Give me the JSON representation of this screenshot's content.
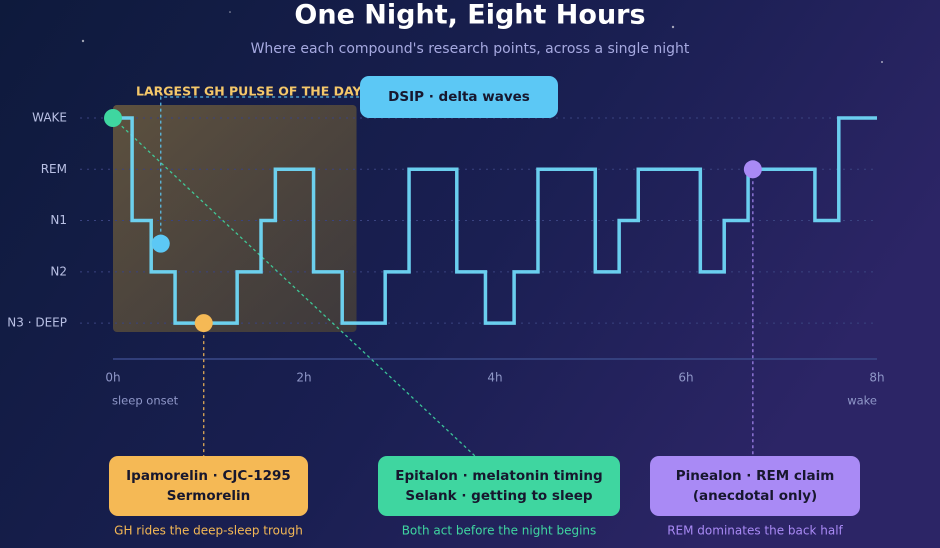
{
  "chart_data": {
    "type": "step",
    "title": "One Night, Eight Hours",
    "subtitle": "Where each compound's research points, across a single night",
    "color": "#6fd8f7",
    "x": [
      0,
      0.2,
      0.4,
      0.65,
      1.3,
      1.55,
      1.7,
      2.1,
      2.4,
      2.85,
      3.1,
      3.6,
      3.9,
      4.2,
      4.45,
      5.05,
      5.3,
      5.5,
      6.15,
      6.4,
      6.65,
      7.35,
      7.6,
      8
    ],
    "values": [
      4,
      2,
      1,
      0,
      1,
      2,
      3,
      1,
      0,
      1,
      3,
      1,
      0,
      1,
      3,
      1,
      2,
      3,
      1,
      2,
      3,
      2,
      4,
      4
    ],
    "xlim": [
      0,
      8
    ],
    "xticks": [
      {
        "value": 0,
        "label": "0h"
      },
      {
        "value": 2,
        "label": "2h"
      },
      {
        "value": 4,
        "label": "4h"
      },
      {
        "value": 6,
        "label": "6h"
      },
      {
        "value": 8,
        "label": "8h"
      }
    ],
    "x_annotations": [
      {
        "x": 0,
        "label": "sleep onset"
      },
      {
        "x": 8,
        "label": "wake"
      }
    ],
    "ylim": [
      -0.7,
      4
    ],
    "yticks": [
      {
        "value": 0,
        "label": "N3 · DEEP"
      },
      {
        "value": 1,
        "label": "N2"
      },
      {
        "value": 2,
        "label": "N1"
      },
      {
        "value": 3,
        "label": "REM"
      },
      {
        "value": 4,
        "label": "WAKE"
      }
    ],
    "grid": true,
    "highlight": {
      "label": "LARGEST GH PULSE OF THE DAY",
      "xrange": [
        0,
        2.55
      ]
    },
    "markers": [
      {
        "x": 0,
        "y": 4,
        "color": "#3fd6a0",
        "callout": [
          "Epitalon · melatonin timing",
          "Selank · getting to sleep"
        ],
        "caption": "Both act before the night begins"
      },
      {
        "x": 0.5,
        "y": 1.55,
        "color": "#5cc8f5",
        "callout": [
          "DSIP · delta waves"
        ]
      },
      {
        "x": 0.95,
        "y": 0,
        "color": "#f5b955",
        "callout": [
          "Ipamorelin · CJC-1295",
          "Sermorelin"
        ],
        "caption": "GH rides the deep-sleep trough"
      },
      {
        "x": 6.7,
        "y": 3,
        "color": "#a98af5",
        "callout": [
          "Pinealon · REM claim",
          "(anecdotal only)"
        ],
        "caption": "REM dominates the back half"
      }
    ]
  }
}
